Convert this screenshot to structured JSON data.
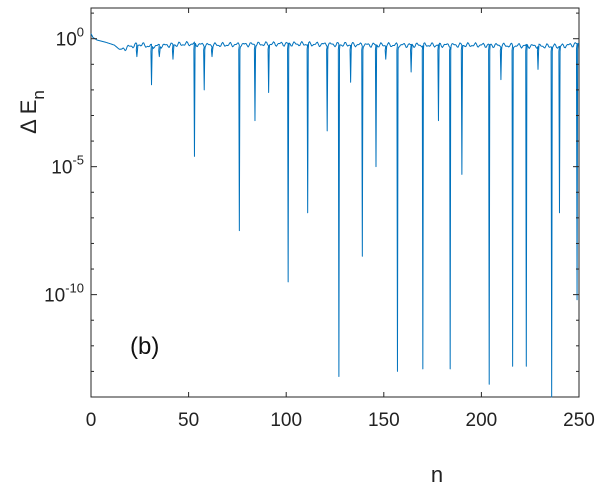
{
  "chart_data": {
    "type": "line",
    "title": "",
    "panel_label": "(b)",
    "xlabel": "n",
    "ylabel": {
      "main": "Δ E",
      "subscript": "n"
    },
    "xlim": [
      0,
      250
    ],
    "ylim_log10": [
      -14,
      1.2
    ],
    "yscale": "log",
    "grid": false,
    "x_ticks": [
      0,
      50,
      100,
      150,
      200,
      250
    ],
    "y_ticks": [
      {
        "value_log10": 0,
        "base": "10",
        "exponent": "0"
      },
      {
        "value_log10": -5,
        "base": "10",
        "exponent": "-5"
      },
      {
        "value_log10": -10,
        "base": "10",
        "exponent": "-10"
      }
    ],
    "series": [
      {
        "color": "#0072BD",
        "baseline_log10": [
          [
            0,
            0.2
          ],
          [
            1,
            0.05
          ],
          [
            3,
            -0.05
          ],
          [
            8,
            -0.15
          ],
          [
            12,
            -0.25
          ],
          [
            15,
            -0.45
          ],
          [
            20,
            -0.3
          ],
          [
            25,
            -0.22
          ],
          [
            30,
            -0.3
          ],
          [
            50,
            -0.2
          ],
          [
            60,
            -0.25
          ],
          [
            100,
            -0.2
          ],
          [
            150,
            -0.25
          ],
          [
            200,
            -0.25
          ],
          [
            240,
            -0.3
          ],
          [
            250,
            -0.2
          ]
        ],
        "dips": [
          {
            "n": 23.5,
            "log10_min": -0.7
          },
          {
            "n": 31,
            "log10_min": -1.8
          },
          {
            "n": 35,
            "log10_min": -0.7
          },
          {
            "n": 42,
            "log10_min": -0.8
          },
          {
            "n": 53,
            "log10_min": -4.6
          },
          {
            "n": 58,
            "log10_min": -2.0
          },
          {
            "n": 62,
            "log10_min": -0.7
          },
          {
            "n": 76,
            "log10_min": -7.5
          },
          {
            "n": 84,
            "log10_min": -3.2
          },
          {
            "n": 91,
            "log10_min": -2.1
          },
          {
            "n": 101,
            "log10_min": -9.5
          },
          {
            "n": 111,
            "log10_min": -6.8
          },
          {
            "n": 121,
            "log10_min": -3.6
          },
          {
            "n": 127,
            "log10_min": -13.2
          },
          {
            "n": 133,
            "log10_min": -1.7
          },
          {
            "n": 139,
            "log10_min": -8.5
          },
          {
            "n": 146,
            "log10_min": -5.0
          },
          {
            "n": 151,
            "log10_min": -0.8
          },
          {
            "n": 157,
            "log10_min": -13.0
          },
          {
            "n": 164,
            "log10_min": -1.3
          },
          {
            "n": 170,
            "log10_min": -12.9
          },
          {
            "n": 178,
            "log10_min": -3.2
          },
          {
            "n": 184,
            "log10_min": -12.9
          },
          {
            "n": 190,
            "log10_min": -5.3
          },
          {
            "n": 204,
            "log10_min": -13.5
          },
          {
            "n": 210,
            "log10_min": -1.6
          },
          {
            "n": 216,
            "log10_min": -12.8
          },
          {
            "n": 223,
            "log10_min": -12.8
          },
          {
            "n": 229,
            "log10_min": -1.2
          },
          {
            "n": 236,
            "log10_min": -14.0
          },
          {
            "n": 240,
            "log10_min": -6.8
          },
          {
            "n": 249,
            "log10_min": -10.2
          }
        ]
      }
    ]
  }
}
